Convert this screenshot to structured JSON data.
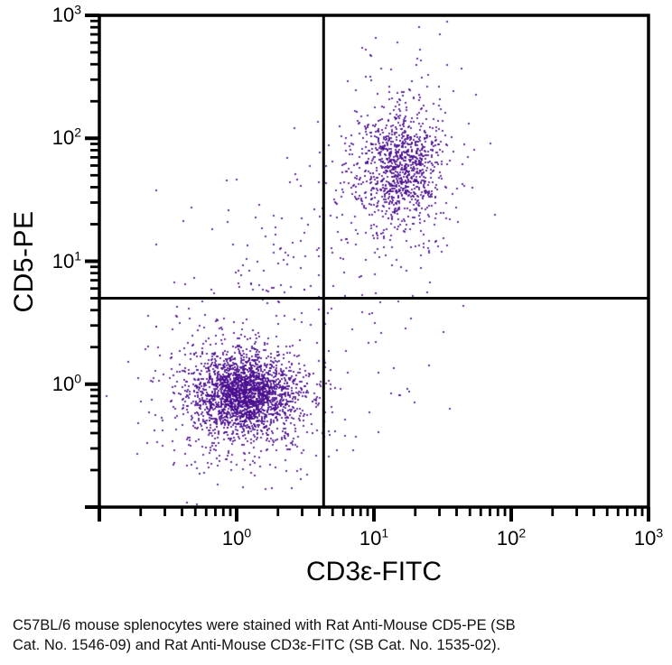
{
  "figure": {
    "caption_line1": "C57BL/6 mouse splenocytes were stained with Rat Anti-Mouse CD5-PE (SB",
    "caption_line2": "Cat. No. 1546-09) and Rat Anti-Mouse CD3ε-FITC (SB Cat. No. 1535-02)."
  },
  "chart_data": {
    "type": "scatter",
    "subtype": "flow-cytometry-dot-plot",
    "xlabel": "CD3ε-FITC",
    "ylabel": "CD5-PE",
    "xscale": "log",
    "yscale": "log",
    "xlim": [
      0.1,
      1000
    ],
    "ylim": [
      0.1,
      1000
    ],
    "x_tick_exponents": [
      0,
      1,
      2,
      3
    ],
    "y_tick_exponents": [
      0,
      1,
      2,
      3
    ],
    "grid": false,
    "legend": "none",
    "quadrant_gates": {
      "x_value": 4.3,
      "y_value": 5.0
    },
    "axis_color": "#000000",
    "background": "#ffffff",
    "dot_color_rgb": [
      74,
      14,
      143
    ],
    "dot_alpha": 0.85,
    "dot_size_px": 2,
    "populations": [
      {
        "name": "double-negative core (CD3-CD5-)",
        "center_x": 1.1,
        "center_y": 0.85,
        "log_sd_x": 0.17,
        "log_sd_y": 0.15,
        "n": 1750
      },
      {
        "name": "double-negative halo",
        "center_x": 1.1,
        "center_y": 0.8,
        "log_sd_x": 0.32,
        "log_sd_y": 0.3,
        "n": 780
      },
      {
        "name": "double-positive T cells core (CD3+CD5+)",
        "center_x": 15.5,
        "center_y": 60,
        "log_sd_x": 0.15,
        "log_sd_y": 0.23,
        "n": 820
      },
      {
        "name": "double-positive halo",
        "center_x": 15.0,
        "center_y": 55,
        "log_sd_x": 0.27,
        "log_sd_y": 0.42,
        "n": 300
      },
      {
        "name": "bridge scatter",
        "center_x": 5.0,
        "center_y": 16,
        "log_sd_x": 0.35,
        "log_sd_y": 0.4,
        "n": 70
      },
      {
        "name": "upper-left scatter",
        "center_x": 1.4,
        "center_y": 9,
        "log_sd_x": 0.38,
        "log_sd_y": 0.32,
        "n": 60
      },
      {
        "name": "lower-right scatter",
        "center_x": 11,
        "center_y": 1.8,
        "log_sd_x": 0.3,
        "log_sd_y": 0.35,
        "n": 25
      },
      {
        "name": "top outlier event",
        "center_x": 20,
        "center_y": 850,
        "log_sd_x": 0.02,
        "log_sd_y": 0.02,
        "n": 1
      }
    ]
  }
}
